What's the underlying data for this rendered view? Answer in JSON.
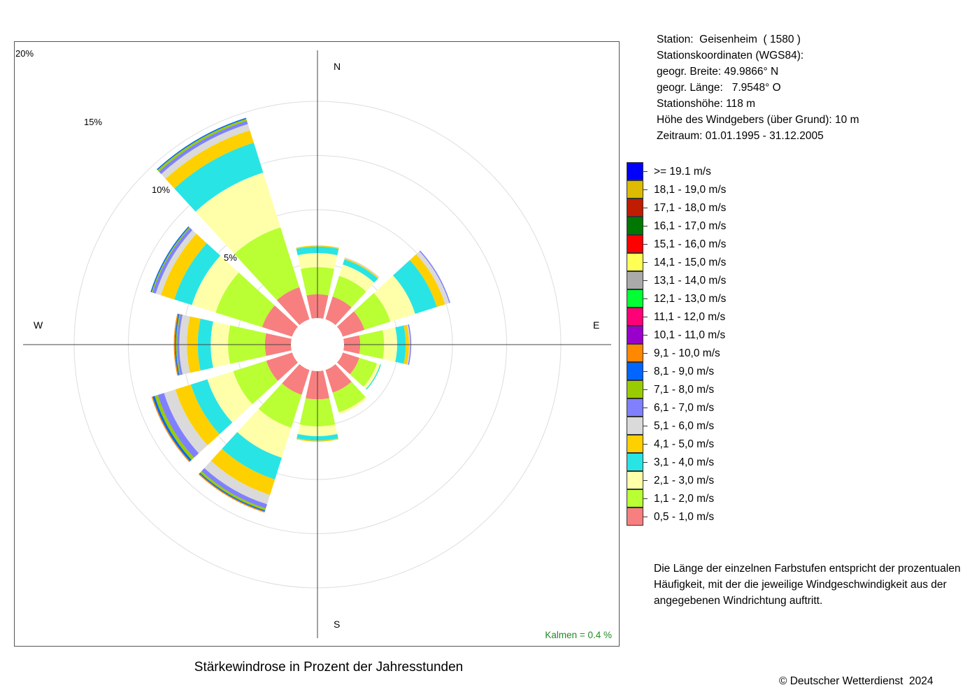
{
  "chart_data": {
    "type": "windrose",
    "title": "Stärkewindrose in Prozent der Jahresstunden",
    "calm_label": "Kalmen  =  0.4 %",
    "compass": [
      "N",
      "E",
      "S",
      "W"
    ],
    "radial_ticks": [
      5,
      10,
      15,
      20
    ],
    "radial_tick_labels": [
      "5%",
      "10%",
      "15%",
      "20%"
    ],
    "directions_deg": [
      0,
      30,
      60,
      90,
      120,
      150,
      180,
      210,
      240,
      270,
      300,
      330
    ],
    "bin_colors": [
      "#f87f7f",
      "#b9ff33",
      "#ffffaa",
      "#29e4e4",
      "#ffd000",
      "#dadada",
      "#8080ff",
      "#99cc00",
      "#0066ff",
      "#ff8800",
      "#9900cc",
      "#ff0077",
      "#00ff33",
      "#aaaaaa",
      "#ffff55",
      "#ff0000",
      "#007700",
      "#c01c00",
      "#ddbb00",
      "#0000ff"
    ],
    "series": [
      {
        "name": "0,5 - 1,0 m/s",
        "values": [
          2.2,
          2.2,
          2.1,
          1.5,
          1.6,
          2.2,
          2.6,
          2.4,
          2.5,
          2.4,
          2.9,
          3.1
        ]
      },
      {
        "name": "1,1 - 2,0 m/s",
        "values": [
          2.5,
          2.0,
          2.5,
          2.2,
          1.7,
          1.9,
          2.5,
          3.2,
          3.2,
          3.4,
          4.5,
          5.8
        ]
      },
      {
        "name": "2,1 - 3,0 m/s",
        "values": [
          1.3,
          1.1,
          2.4,
          1.2,
          0.3,
          0.2,
          0.9,
          2.9,
          2.5,
          1.6,
          2.3,
          5.3
        ]
      },
      {
        "name": "3,1 - 4,0 m/s",
        "values": [
          0.6,
          0.5,
          2.1,
          0.8,
          0.1,
          0.0,
          0.4,
          2.1,
          1.6,
          1.2,
          1.7,
          2.9
        ]
      },
      {
        "name": "4,1 - 5,0 m/s",
        "values": [
          0.1,
          0.1,
          0.8,
          0.3,
          0.0,
          0.0,
          0.1,
          1.5,
          1.5,
          1.0,
          1.3,
          1.2
        ]
      },
      {
        "name": "5,1 - 6,0 m/s",
        "values": [
          0.0,
          0.1,
          0.4,
          0.1,
          0.0,
          0.0,
          0.0,
          0.9,
          1.1,
          0.7,
          0.5,
          0.6
        ]
      },
      {
        "name": "6,1 - 7,0 m/s",
        "values": [
          0.0,
          0.0,
          0.1,
          0.1,
          0.0,
          0.0,
          0.0,
          0.4,
          0.6,
          0.2,
          0.3,
          0.3
        ]
      },
      {
        "name": "7,1 - 8,0 m/s",
        "values": [
          0.0,
          0.0,
          0.0,
          0.0,
          0.0,
          0.0,
          0.0,
          0.2,
          0.3,
          0.1,
          0.1,
          0.2
        ]
      },
      {
        "name": "8,1 - 9,0 m/s",
        "values": [
          0.0,
          0.0,
          0.0,
          0.0,
          0.0,
          0.0,
          0.0,
          0.1,
          0.2,
          0.1,
          0.1,
          0.1
        ]
      },
      {
        "name": "9,1 - 10,0 m/s",
        "values": [
          0.0,
          0.0,
          0.0,
          0.0,
          0.0,
          0.0,
          0.0,
          0.1,
          0.1,
          0.1,
          0.0,
          0.0
        ]
      },
      {
        "name": "10,1 - 11,0 m/s",
        "values": [
          0.0,
          0.0,
          0.0,
          0.0,
          0.0,
          0.0,
          0.0,
          0.0,
          0.0,
          0.0,
          0.0,
          0.0
        ]
      },
      {
        "name": "11,1 - 12,0 m/s",
        "values": [
          0.0,
          0.0,
          0.0,
          0.0,
          0.0,
          0.0,
          0.0,
          0.0,
          0.0,
          0.0,
          0.0,
          0.0
        ]
      },
      {
        "name": "12,1 - 13,0 m/s",
        "values": [
          0.0,
          0.0,
          0.0,
          0.0,
          0.0,
          0.0,
          0.0,
          0.0,
          0.0,
          0.0,
          0.0,
          0.0
        ]
      },
      {
        "name": "13,1 - 14,0 m/s",
        "values": [
          0.0,
          0.0,
          0.0,
          0.0,
          0.0,
          0.0,
          0.0,
          0.0,
          0.0,
          0.0,
          0.0,
          0.0
        ]
      },
      {
        "name": "14,1 - 15,0 m/s",
        "values": [
          0.0,
          0.0,
          0.0,
          0.0,
          0.0,
          0.0,
          0.0,
          0.0,
          0.0,
          0.0,
          0.0,
          0.0
        ]
      },
      {
        "name": "15,1 - 16,0 m/s",
        "values": [
          0.0,
          0.0,
          0.0,
          0.0,
          0.0,
          0.0,
          0.0,
          0.0,
          0.0,
          0.0,
          0.0,
          0.0
        ]
      },
      {
        "name": "16,1 - 17,0 m/s",
        "values": [
          0.0,
          0.0,
          0.0,
          0.0,
          0.0,
          0.0,
          0.0,
          0.0,
          0.0,
          0.0,
          0.0,
          0.0
        ]
      },
      {
        "name": "17,1 - 18,0 m/s",
        "values": [
          0.0,
          0.0,
          0.0,
          0.0,
          0.0,
          0.0,
          0.0,
          0.0,
          0.0,
          0.0,
          0.0,
          0.0
        ]
      },
      {
        "name": "18,1 - 19,0 m/s",
        "values": [
          0.0,
          0.0,
          0.0,
          0.0,
          0.0,
          0.0,
          0.0,
          0.0,
          0.0,
          0.0,
          0.0,
          0.0
        ]
      },
      {
        "name": ">= 19.1 m/s",
        "values": [
          0.0,
          0.0,
          0.0,
          0.0,
          0.0,
          0.0,
          0.0,
          0.0,
          0.0,
          0.0,
          0.0,
          0.0
        ]
      }
    ]
  },
  "station": {
    "lines": [
      "Station:  Geisenheim  ( 1580 )",
      "Stationskoordinaten (WGS84):",
      "geogr. Breite: 49.9866° N",
      "geogr. Länge:   7.9548° O",
      "Stationshöhe: 118 m",
      "Höhe des Windgebers (über Grund): 10 m",
      "Zeitraum: 01.01.1995 - 31.12.2005"
    ]
  },
  "note": {
    "lines": [
      "Die Länge der einzelnen Farbstufen entspricht der prozentualen",
      "Häufigkeit, mit der die jeweilige Windgeschwindigkeit aus der",
      "angegebenen Windrichtung auftritt."
    ]
  },
  "copyright": "© Deutscher Wetterdienst  2024"
}
